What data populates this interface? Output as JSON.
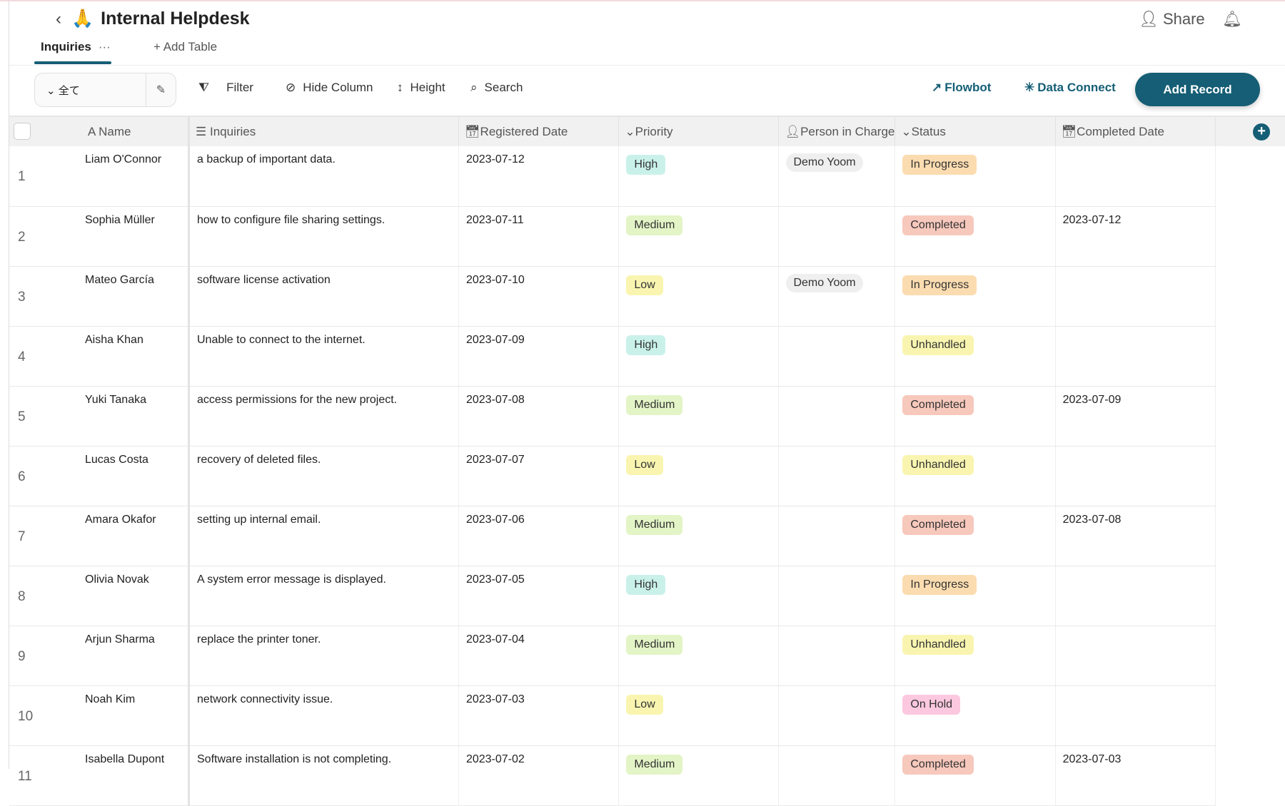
{
  "app": {
    "title": "Internal Helpdesk",
    "emoji": "🙏",
    "share": "Share"
  },
  "tabs": [
    {
      "label": "Inquiries",
      "more": "···"
    }
  ],
  "add_table": "Add Table",
  "toolbar": {
    "view": "全て",
    "filter": "Filter",
    "hide_column": "Hide Column",
    "height": "Height",
    "search": "Search",
    "flowbot": "Flowbot",
    "data_connect": "Data Connect",
    "add_record": "Add Record"
  },
  "columns": [
    "Name",
    "Inquiries",
    "Registered Date",
    "Priority",
    "Person in Charge",
    "Status",
    "Completed Date"
  ],
  "colors": {
    "accent": "#155e75",
    "High": "#c9f1ea",
    "Medium": "#e3f4c6",
    "Low": "#f9f5b0",
    "In Progress": "#fbdcb0",
    "Completed": "#f7c8bc",
    "Unhandled": "#f9f5b0",
    "On Hold": "#fbc8df"
  },
  "rows": [
    {
      "n": "1",
      "name": "Liam O'Connor",
      "inquiry": "a backup of important data.",
      "registered": "2023-07-12",
      "priority": "High",
      "person": "Demo Yoom",
      "status": "In Progress",
      "completed": ""
    },
    {
      "n": "2",
      "name": "Sophia Müller",
      "inquiry": "how to configure file sharing settings.",
      "registered": "2023-07-11",
      "priority": "Medium",
      "person": "",
      "status": "Completed",
      "completed": "2023-07-12"
    },
    {
      "n": "3",
      "name": "Mateo García",
      "inquiry": "software license activation",
      "registered": "2023-07-10",
      "priority": "Low",
      "person": "Demo Yoom",
      "status": "In Progress",
      "completed": ""
    },
    {
      "n": "4",
      "name": "Aisha Khan",
      "inquiry": "Unable to connect to the internet.",
      "registered": "2023-07-09",
      "priority": "High",
      "person": "",
      "status": "Unhandled",
      "completed": ""
    },
    {
      "n": "5",
      "name": "Yuki Tanaka",
      "inquiry": "access permissions for the new project.",
      "registered": "2023-07-08",
      "priority": "Medium",
      "person": "",
      "status": "Completed",
      "completed": "2023-07-09"
    },
    {
      "n": "6",
      "name": "Lucas Costa",
      "inquiry": "recovery of deleted files.",
      "registered": "2023-07-07",
      "priority": "Low",
      "person": "",
      "status": "Unhandled",
      "completed": ""
    },
    {
      "n": "7",
      "name": "Amara Okafor",
      "inquiry": "setting up internal email.",
      "registered": "2023-07-06",
      "priority": "Medium",
      "person": "",
      "status": "Completed",
      "completed": "2023-07-08"
    },
    {
      "n": "8",
      "name": "Olivia Novak",
      "inquiry": "A system error message is displayed.",
      "registered": "2023-07-05",
      "priority": "High",
      "person": "",
      "status": "In Progress",
      "completed": ""
    },
    {
      "n": "9",
      "name": "Arjun Sharma",
      "inquiry": "replace the printer toner.",
      "registered": "2023-07-04",
      "priority": "Medium",
      "person": "",
      "status": "Unhandled",
      "completed": ""
    },
    {
      "n": "10",
      "name": "Noah Kim",
      "inquiry": "network connectivity issue.",
      "registered": "2023-07-03",
      "priority": "Low",
      "person": "",
      "status": "On Hold",
      "completed": ""
    },
    {
      "n": "11",
      "name": "Isabella Dupont",
      "inquiry": "Software installation is not completing.",
      "registered": "2023-07-02",
      "priority": "Medium",
      "person": "",
      "status": "Completed",
      "completed": "2023-07-03"
    }
  ]
}
